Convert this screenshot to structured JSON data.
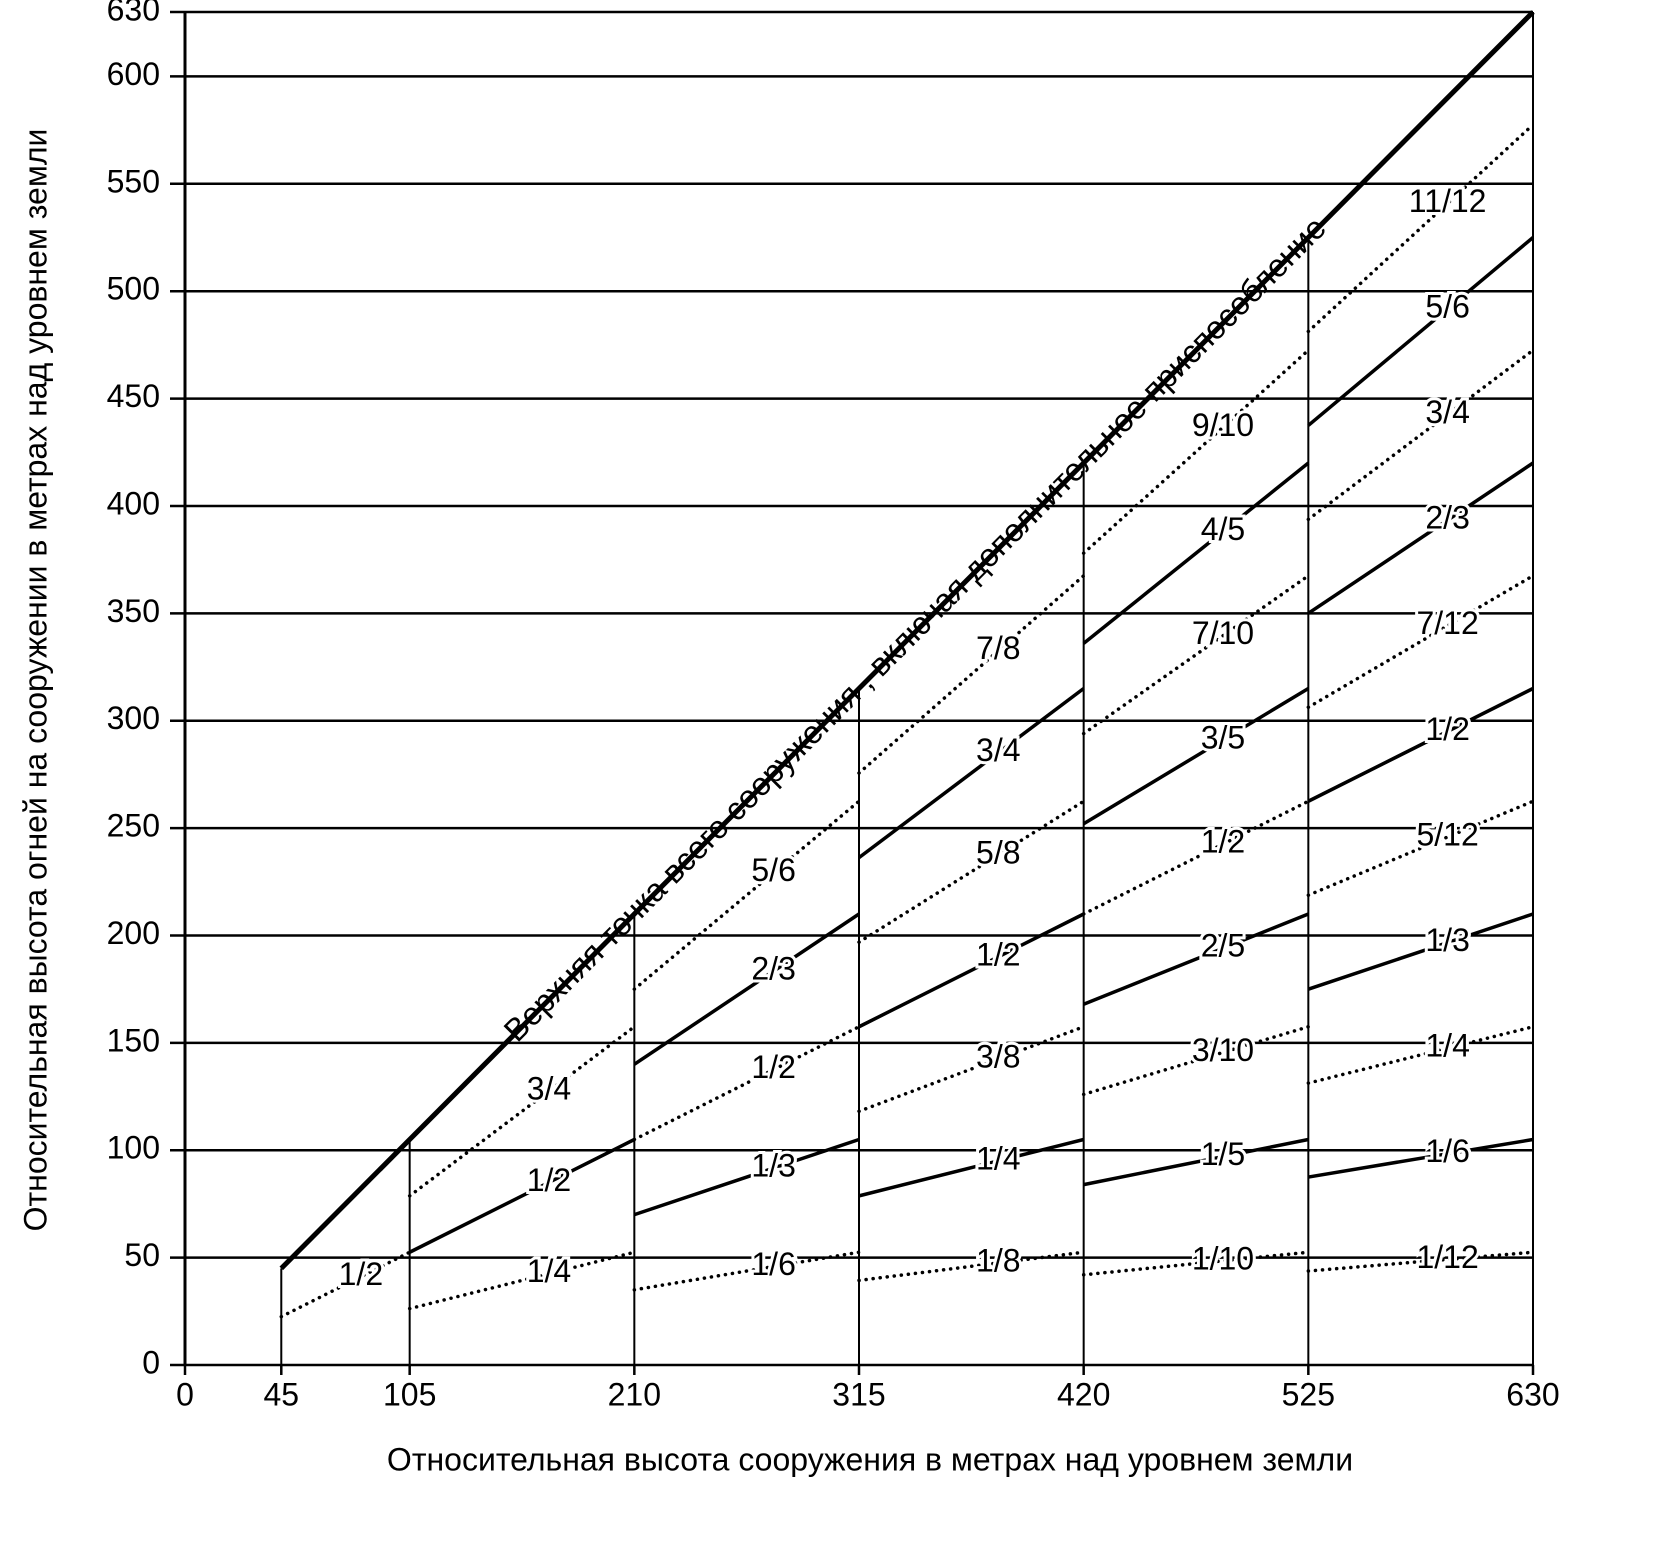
{
  "chart_data": {
    "type": "line",
    "x_label": "Относительная высота сооружения в метрах над уровнем земли",
    "y_label": "Относительная высота огней на сооружении в метрах над уровнем земли",
    "xlim": [
      0,
      630
    ],
    "ylim": [
      0,
      630
    ],
    "xticks": [
      0,
      45,
      105,
      210,
      315,
      420,
      525,
      630
    ],
    "yticks": [
      0,
      50,
      100,
      150,
      200,
      250,
      300,
      350,
      400,
      450,
      500,
      550,
      600,
      630
    ],
    "grid": true,
    "color": "#000000",
    "series": [
      {
        "name": "Верхняя точка всего сооружения , включая дополнительное приспособление",
        "line_style": "bold",
        "x": [
          45,
          630
        ],
        "values": [
          45,
          630
        ]
      },
      {
        "name": "1/2",
        "line_style": "dotted",
        "x": [
          45,
          105
        ],
        "values": [
          22.5,
          52.5
        ]
      },
      {
        "name": "1/4",
        "line_style": "dotted",
        "x": [
          105,
          210
        ],
        "values": [
          26.25,
          52.5
        ]
      },
      {
        "name": "1/2",
        "line_style": "solid",
        "x": [
          105,
          210
        ],
        "values": [
          52.5,
          105
        ]
      },
      {
        "name": "3/4",
        "line_style": "dotted",
        "x": [
          105,
          210
        ],
        "values": [
          78.75,
          157.5
        ]
      },
      {
        "name": "1/6",
        "line_style": "dotted",
        "x": [
          210,
          315
        ],
        "values": [
          35,
          52.5
        ]
      },
      {
        "name": "1/3",
        "line_style": "solid",
        "x": [
          210,
          315
        ],
        "values": [
          70,
          105
        ]
      },
      {
        "name": "1/2",
        "line_style": "dotted",
        "x": [
          210,
          315
        ],
        "values": [
          105,
          157.5
        ]
      },
      {
        "name": "2/3",
        "line_style": "solid",
        "x": [
          210,
          315
        ],
        "values": [
          140,
          210
        ]
      },
      {
        "name": "5/6",
        "line_style": "dotted",
        "x": [
          210,
          315
        ],
        "values": [
          175,
          262.5
        ]
      },
      {
        "name": "1/8",
        "line_style": "dotted",
        "x": [
          315,
          420
        ],
        "values": [
          39.375,
          52.5
        ]
      },
      {
        "name": "1/4",
        "line_style": "solid",
        "x": [
          315,
          420
        ],
        "values": [
          78.75,
          105
        ]
      },
      {
        "name": "3/8",
        "line_style": "dotted",
        "x": [
          315,
          420
        ],
        "values": [
          118.125,
          157.5
        ]
      },
      {
        "name": "1/2",
        "line_style": "solid",
        "x": [
          315,
          420
        ],
        "values": [
          157.5,
          210
        ]
      },
      {
        "name": "5/8",
        "line_style": "dotted",
        "x": [
          315,
          420
        ],
        "values": [
          196.875,
          262.5
        ]
      },
      {
        "name": "3/4",
        "line_style": "solid",
        "x": [
          315,
          420
        ],
        "values": [
          236.25,
          315
        ]
      },
      {
        "name": "7/8",
        "line_style": "dotted",
        "x": [
          315,
          420
        ],
        "values": [
          275.625,
          367.5
        ]
      },
      {
        "name": "1/10",
        "line_style": "dotted",
        "x": [
          420,
          525
        ],
        "values": [
          42,
          52.5
        ]
      },
      {
        "name": "1/5",
        "line_style": "solid",
        "x": [
          420,
          525
        ],
        "values": [
          84,
          105
        ]
      },
      {
        "name": "3/10",
        "line_style": "dotted",
        "x": [
          420,
          525
        ],
        "values": [
          126,
          157.5
        ]
      },
      {
        "name": "2/5",
        "line_style": "solid",
        "x": [
          420,
          525
        ],
        "values": [
          168,
          210
        ]
      },
      {
        "name": "1/2",
        "line_style": "dotted",
        "x": [
          420,
          525
        ],
        "values": [
          210,
          262.5
        ]
      },
      {
        "name": "3/5",
        "line_style": "solid",
        "x": [
          420,
          525
        ],
        "values": [
          252,
          315
        ]
      },
      {
        "name": "7/10",
        "line_style": "dotted",
        "x": [
          420,
          525
        ],
        "values": [
          294,
          367.5
        ]
      },
      {
        "name": "4/5",
        "line_style": "solid",
        "x": [
          420,
          525
        ],
        "values": [
          336,
          420
        ]
      },
      {
        "name": "9/10",
        "line_style": "dotted",
        "x": [
          420,
          525
        ],
        "values": [
          378,
          472.5
        ]
      },
      {
        "name": "1/12",
        "line_style": "dotted",
        "x": [
          525,
          630
        ],
        "values": [
          43.75,
          52.5
        ]
      },
      {
        "name": "1/6",
        "line_style": "solid",
        "x": [
          525,
          630
        ],
        "values": [
          87.5,
          105
        ]
      },
      {
        "name": "1/4",
        "line_style": "dotted",
        "x": [
          525,
          630
        ],
        "values": [
          131.25,
          157.5
        ]
      },
      {
        "name": "1/3",
        "line_style": "solid",
        "x": [
          525,
          630
        ],
        "values": [
          175,
          210
        ]
      },
      {
        "name": "5/12",
        "line_style": "dotted",
        "x": [
          525,
          630
        ],
        "values": [
          218.75,
          262.5
        ]
      },
      {
        "name": "1/2",
        "line_style": "solid",
        "x": [
          525,
          630
        ],
        "values": [
          262.5,
          315
        ]
      },
      {
        "name": "7/12",
        "line_style": "dotted",
        "x": [
          525,
          630
        ],
        "values": [
          306.25,
          367.5
        ]
      },
      {
        "name": "2/3",
        "line_style": "solid",
        "x": [
          525,
          630
        ],
        "values": [
          350,
          420
        ]
      },
      {
        "name": "3/4",
        "line_style": "dotted",
        "x": [
          525,
          630
        ],
        "values": [
          393.75,
          472.5
        ]
      },
      {
        "name": "5/6",
        "line_style": "solid",
        "x": [
          525,
          630
        ],
        "values": [
          437.5,
          525
        ]
      },
      {
        "name": "11/12",
        "line_style": "dotted",
        "x": [
          525,
          630
        ],
        "values": [
          481.25,
          577.5
        ]
      }
    ]
  }
}
